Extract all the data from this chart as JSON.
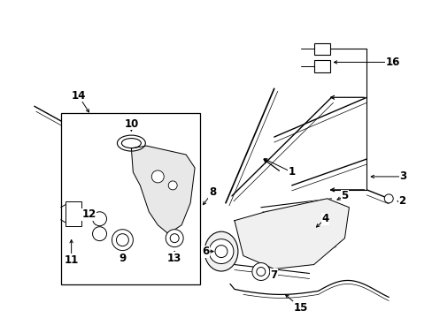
{
  "bg_color": "#ffffff",
  "line_color": "#000000",
  "fig_width": 4.89,
  "fig_height": 3.6,
  "dpi": 100,
  "label_fontsize": 8.5,
  "lw": 0.9
}
